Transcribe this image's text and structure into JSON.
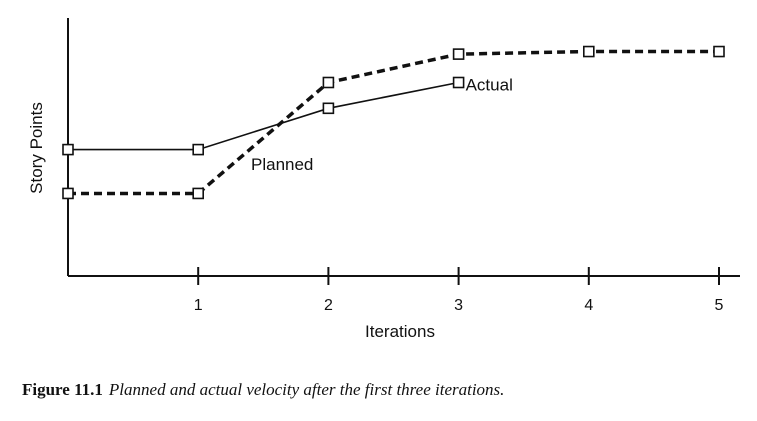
{
  "chart_data": {
    "type": "line",
    "xlabel": "Iterations",
    "ylabel": "Story Points",
    "x_ticks": [
      "1",
      "2",
      "3",
      "4",
      "5"
    ],
    "xlim": [
      0,
      5.15
    ],
    "ylim": [
      0,
      10
    ],
    "grid": false,
    "series": [
      {
        "name": "Planned",
        "style": "dashed",
        "x": [
          0,
          1,
          2,
          3,
          4,
          5
        ],
        "values": [
          3.2,
          3.2,
          7.5,
          8.6,
          8.7,
          8.7
        ]
      },
      {
        "name": "Actual",
        "style": "solid",
        "x": [
          0,
          1,
          2,
          3
        ],
        "values": [
          4.9,
          4.9,
          6.5,
          7.5
        ]
      }
    ]
  },
  "caption": {
    "number": "Figure 11.1",
    "text": "Planned and actual velocity after the first three iterations."
  }
}
